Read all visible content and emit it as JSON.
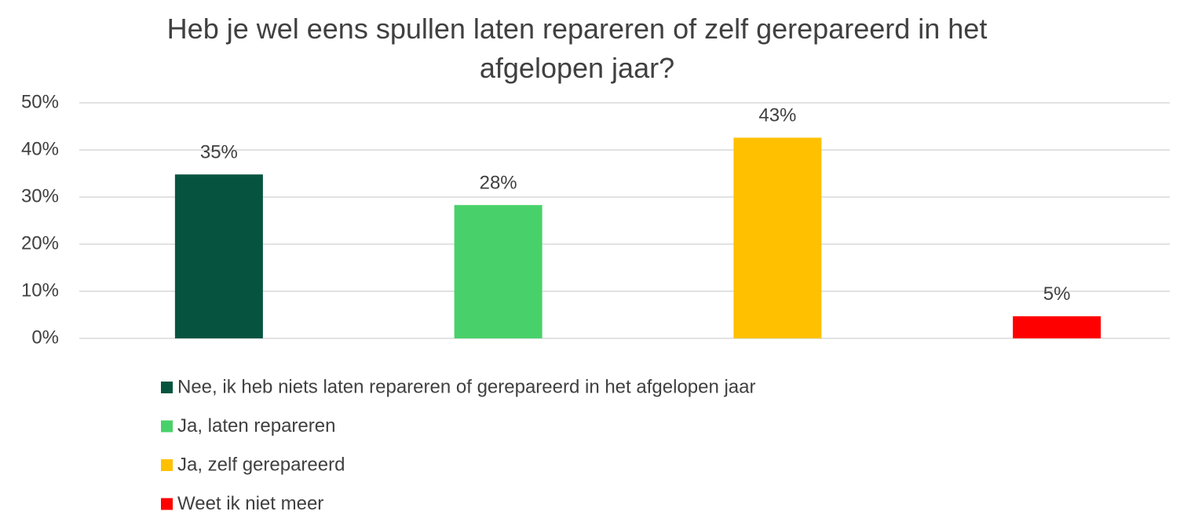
{
  "chart_data": {
    "type": "bar",
    "title": "Heb je wel eens spullen laten repareren of zelf gerepareerd in het afgelopen jaar?",
    "categories": [
      null
    ],
    "series": [
      {
        "name": "Nee, ik heb niets laten repareren of gerepareerd in het afgelopen jaar",
        "color": "#065440",
        "values": [
          34.8
        ],
        "value_labels": [
          "35%"
        ]
      },
      {
        "name": "Ja, laten repareren",
        "color": "#48d16a",
        "values": [
          28.3
        ],
        "value_labels": [
          "28%"
        ]
      },
      {
        "name": "Ja, zelf gerepareerd",
        "color": "#ffc000",
        "values": [
          42.6
        ],
        "value_labels": [
          "43%"
        ]
      },
      {
        "name": "Weet ik niet meer",
        "color": "#ff0000",
        "values": [
          4.7
        ],
        "value_labels": [
          "5%"
        ]
      }
    ],
    "ylim": [
      0,
      50
    ],
    "yticks": [
      {
        "value": 0,
        "label": "0%"
      },
      {
        "value": 10,
        "label": "10%"
      },
      {
        "value": 20,
        "label": "20%"
      },
      {
        "value": 30,
        "label": "30%"
      },
      {
        "value": 40,
        "label": "40%"
      },
      {
        "value": 50,
        "label": "50%"
      }
    ],
    "grid": true,
    "legend": "bottom"
  }
}
